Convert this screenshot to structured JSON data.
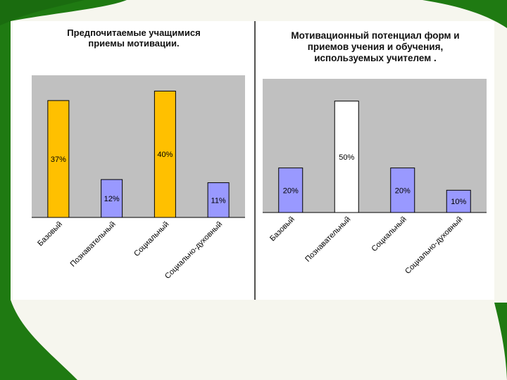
{
  "colors": {
    "background": "#f6f6ee",
    "frame_green": "#1f7a12",
    "plot_bg": "#c0c0c0",
    "bar_yellow": "#ffc000",
    "bar_periwinkle": "#9999ff",
    "bar_white": "#ffffff"
  },
  "chart_data": [
    {
      "type": "bar",
      "title": "Предпочитаемые учащимися\nприемы мотивации.",
      "categories": [
        "Базовый",
        "Познавательный",
        "Социальный",
        "Социально-духовный"
      ],
      "values": [
        37,
        12,
        40,
        11
      ],
      "value_labels": [
        "37%",
        "12%",
        "40%",
        "11%"
      ],
      "bar_colors": [
        "#ffc000",
        "#9999ff",
        "#ffc000",
        "#9999ff"
      ],
      "ylim": [
        0,
        45
      ],
      "grid": false,
      "legend": "none"
    },
    {
      "type": "bar",
      "title": "Мотивационный потенциал  форм и\nприемов учения и обучения,\nиспользуемых учителем .",
      "categories": [
        "Базовый",
        "Познавательный",
        "Социальный",
        "Социально-духовный"
      ],
      "values": [
        20,
        50,
        20,
        10
      ],
      "value_labels": [
        "20%",
        "50%",
        "20%",
        "10%"
      ],
      "bar_colors": [
        "#9999ff",
        "#ffffff",
        "#9999ff",
        "#9999ff"
      ],
      "ylim": [
        0,
        60
      ],
      "grid": false,
      "legend": "none"
    }
  ]
}
